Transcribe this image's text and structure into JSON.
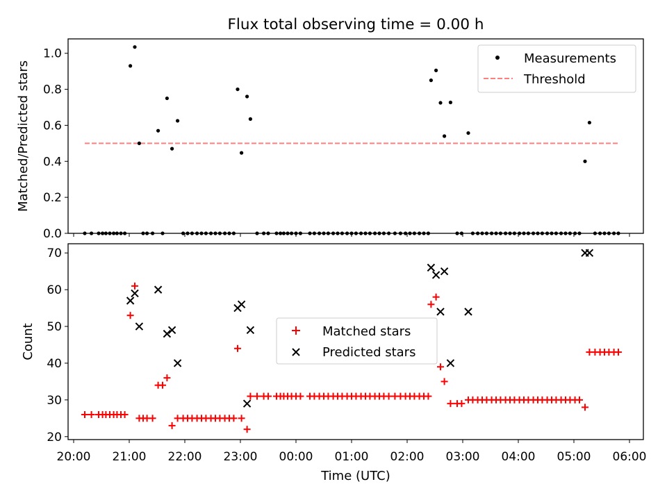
{
  "chart_data": [
    {
      "type": "scatter",
      "title": "Flux total observing time = 0.00 h",
      "ylabel": "Matched/Predicted stars",
      "xlabel": "",
      "ylim": [
        0,
        1.08
      ],
      "yticks": [
        "0.0",
        "0.2",
        "0.4",
        "0.6",
        "0.8",
        "1.0"
      ],
      "legend_position": "upper-right",
      "series": [
        {
          "name": "Measurements",
          "marker": "dot",
          "color": "#000000",
          "points": [
            [
              20.2,
              0
            ],
            [
              20.32,
              0
            ],
            [
              20.45,
              0
            ],
            [
              20.52,
              0
            ],
            [
              20.58,
              0
            ],
            [
              20.65,
              0
            ],
            [
              20.72,
              0
            ],
            [
              20.78,
              0
            ],
            [
              20.85,
              0
            ],
            [
              20.92,
              0
            ],
            [
              21.02,
              0.93
            ],
            [
              21.1,
              1.035
            ],
            [
              21.18,
              0.5
            ],
            [
              21.25,
              0
            ],
            [
              21.32,
              0
            ],
            [
              21.42,
              0
            ],
            [
              21.52,
              0.57
            ],
            [
              21.6,
              0
            ],
            [
              21.68,
              0.75
            ],
            [
              21.77,
              0.47
            ],
            [
              21.87,
              0.625
            ],
            [
              21.97,
              0
            ],
            [
              22.05,
              0
            ],
            [
              22.13,
              0
            ],
            [
              22.22,
              0
            ],
            [
              22.3,
              0
            ],
            [
              22.38,
              0
            ],
            [
              22.47,
              0
            ],
            [
              22.55,
              0
            ],
            [
              22.63,
              0
            ],
            [
              22.72,
              0
            ],
            [
              22.8,
              0
            ],
            [
              22.88,
              0
            ],
            [
              22.95,
              0.8
            ],
            [
              23.02,
              0.447
            ],
            [
              23.12,
              0.76
            ],
            [
              23.18,
              0.635
            ],
            [
              23.3,
              0
            ],
            [
              23.42,
              0
            ],
            [
              23.5,
              0
            ],
            [
              23.65,
              0
            ],
            [
              23.72,
              0
            ],
            [
              23.78,
              0
            ],
            [
              23.85,
              0
            ],
            [
              23.92,
              0
            ],
            [
              24.0,
              0
            ],
            [
              24.08,
              0
            ],
            [
              24.25,
              0
            ],
            [
              24.33,
              0
            ],
            [
              24.42,
              0
            ],
            [
              24.5,
              0
            ],
            [
              24.58,
              0
            ],
            [
              24.67,
              0
            ],
            [
              24.75,
              0
            ],
            [
              24.83,
              0
            ],
            [
              24.92,
              0
            ],
            [
              25.0,
              0
            ],
            [
              25.08,
              0
            ],
            [
              25.17,
              0
            ],
            [
              25.25,
              0
            ],
            [
              25.33,
              0
            ],
            [
              25.42,
              0
            ],
            [
              25.5,
              0
            ],
            [
              25.58,
              0
            ],
            [
              25.67,
              0
            ],
            [
              25.78,
              0
            ],
            [
              25.88,
              0
            ],
            [
              25.97,
              0
            ],
            [
              26.05,
              0
            ],
            [
              26.13,
              0
            ],
            [
              26.22,
              0
            ],
            [
              26.3,
              0
            ],
            [
              26.38,
              0
            ],
            [
              26.43,
              0.85
            ],
            [
              26.52,
              0.905
            ],
            [
              26.6,
              0.725
            ],
            [
              26.67,
              0.54
            ],
            [
              26.78,
              0.727
            ],
            [
              26.9,
              0
            ],
            [
              26.98,
              0
            ],
            [
              27.1,
              0.557
            ],
            [
              27.18,
              0
            ],
            [
              27.27,
              0
            ],
            [
              27.35,
              0
            ],
            [
              27.43,
              0
            ],
            [
              27.52,
              0
            ],
            [
              27.6,
              0
            ],
            [
              27.68,
              0
            ],
            [
              27.77,
              0
            ],
            [
              27.85,
              0
            ],
            [
              27.93,
              0
            ],
            [
              28.02,
              0
            ],
            [
              28.1,
              0
            ],
            [
              28.18,
              0
            ],
            [
              28.27,
              0
            ],
            [
              28.35,
              0
            ],
            [
              28.43,
              0
            ],
            [
              28.52,
              0
            ],
            [
              28.6,
              0
            ],
            [
              28.68,
              0
            ],
            [
              28.77,
              0
            ],
            [
              28.85,
              0
            ],
            [
              28.93,
              0
            ],
            [
              29.02,
              0
            ],
            [
              29.1,
              0
            ],
            [
              29.2,
              0.4
            ],
            [
              29.28,
              0.615
            ],
            [
              29.38,
              0
            ],
            [
              29.47,
              0
            ],
            [
              29.55,
              0
            ],
            [
              29.63,
              0
            ],
            [
              29.72,
              0
            ],
            [
              29.8,
              0
            ]
          ]
        },
        {
          "name": "Threshold",
          "style": "dashed",
          "color": "#ff7f7f",
          "points": [
            [
              20.2,
              0.5
            ],
            [
              29.8,
              0.5
            ]
          ]
        }
      ]
    },
    {
      "type": "scatter",
      "title": "",
      "ylabel": "Count",
      "xlabel": "Time (UTC)",
      "ylim": [
        19.2,
        72.5
      ],
      "xlim": [
        19.9,
        30.25
      ],
      "yticks": [
        "20",
        "30",
        "40",
        "50",
        "60",
        "70"
      ],
      "xticks": [
        "20:00",
        "21:00",
        "22:00",
        "23:00",
        "00:00",
        "01:00",
        "02:00",
        "03:00",
        "04:00",
        "05:00",
        "06:00"
      ],
      "legend_position": "center",
      "series": [
        {
          "name": "Matched stars",
          "marker": "plus",
          "color": "#ff0000",
          "points": [
            [
              20.2,
              26
            ],
            [
              20.32,
              26
            ],
            [
              20.45,
              26
            ],
            [
              20.52,
              26
            ],
            [
              20.58,
              26
            ],
            [
              20.65,
              26
            ],
            [
              20.72,
              26
            ],
            [
              20.78,
              26
            ],
            [
              20.85,
              26
            ],
            [
              20.92,
              26
            ],
            [
              21.02,
              53
            ],
            [
              21.1,
              61
            ],
            [
              21.18,
              25
            ],
            [
              21.25,
              25
            ],
            [
              21.32,
              25
            ],
            [
              21.42,
              25
            ],
            [
              21.52,
              34
            ],
            [
              21.6,
              34
            ],
            [
              21.68,
              36
            ],
            [
              21.77,
              23
            ],
            [
              21.87,
              25
            ],
            [
              21.97,
              25
            ],
            [
              22.05,
              25
            ],
            [
              22.13,
              25
            ],
            [
              22.22,
              25
            ],
            [
              22.3,
              25
            ],
            [
              22.38,
              25
            ],
            [
              22.47,
              25
            ],
            [
              22.55,
              25
            ],
            [
              22.63,
              25
            ],
            [
              22.72,
              25
            ],
            [
              22.8,
              25
            ],
            [
              22.88,
              25
            ],
            [
              22.95,
              44
            ],
            [
              23.02,
              25
            ],
            [
              23.12,
              22
            ],
            [
              23.18,
              31
            ],
            [
              23.3,
              31
            ],
            [
              23.42,
              31
            ],
            [
              23.5,
              31
            ],
            [
              23.65,
              31
            ],
            [
              23.72,
              31
            ],
            [
              23.78,
              31
            ],
            [
              23.85,
              31
            ],
            [
              23.92,
              31
            ],
            [
              24.0,
              31
            ],
            [
              24.08,
              31
            ],
            [
              24.25,
              31
            ],
            [
              24.33,
              31
            ],
            [
              24.42,
              31
            ],
            [
              24.5,
              31
            ],
            [
              24.58,
              31
            ],
            [
              24.67,
              31
            ],
            [
              24.75,
              31
            ],
            [
              24.83,
              31
            ],
            [
              24.92,
              31
            ],
            [
              25.0,
              31
            ],
            [
              25.08,
              31
            ],
            [
              25.17,
              31
            ],
            [
              25.25,
              31
            ],
            [
              25.33,
              31
            ],
            [
              25.42,
              31
            ],
            [
              25.5,
              31
            ],
            [
              25.58,
              31
            ],
            [
              25.67,
              31
            ],
            [
              25.78,
              31
            ],
            [
              25.88,
              31
            ],
            [
              25.97,
              31
            ],
            [
              26.05,
              31
            ],
            [
              26.13,
              31
            ],
            [
              26.22,
              31
            ],
            [
              26.3,
              31
            ],
            [
              26.38,
              31
            ],
            [
              26.43,
              56
            ],
            [
              26.52,
              58
            ],
            [
              26.6,
              39
            ],
            [
              26.67,
              35
            ],
            [
              26.78,
              29
            ],
            [
              26.9,
              29
            ],
            [
              26.98,
              29
            ],
            [
              27.1,
              30
            ],
            [
              27.18,
              30
            ],
            [
              27.27,
              30
            ],
            [
              27.35,
              30
            ],
            [
              27.43,
              30
            ],
            [
              27.52,
              30
            ],
            [
              27.6,
              30
            ],
            [
              27.68,
              30
            ],
            [
              27.77,
              30
            ],
            [
              27.85,
              30
            ],
            [
              27.93,
              30
            ],
            [
              28.02,
              30
            ],
            [
              28.1,
              30
            ],
            [
              28.18,
              30
            ],
            [
              28.27,
              30
            ],
            [
              28.35,
              30
            ],
            [
              28.43,
              30
            ],
            [
              28.52,
              30
            ],
            [
              28.6,
              30
            ],
            [
              28.68,
              30
            ],
            [
              28.77,
              30
            ],
            [
              28.85,
              30
            ],
            [
              28.93,
              30
            ],
            [
              29.02,
              30
            ],
            [
              29.1,
              30
            ],
            [
              29.2,
              28
            ],
            [
              29.28,
              43
            ],
            [
              29.38,
              43
            ],
            [
              29.47,
              43
            ],
            [
              29.55,
              43
            ],
            [
              29.63,
              43
            ],
            [
              29.72,
              43
            ],
            [
              29.8,
              43
            ]
          ]
        },
        {
          "name": "Predicted stars",
          "marker": "x",
          "color": "#000000",
          "points": [
            [
              21.02,
              57
            ],
            [
              21.1,
              59
            ],
            [
              21.18,
              50
            ],
            [
              21.52,
              60
            ],
            [
              21.68,
              48
            ],
            [
              21.77,
              49
            ],
            [
              21.87,
              40
            ],
            [
              22.95,
              55
            ],
            [
              23.02,
              56
            ],
            [
              23.12,
              29
            ],
            [
              23.18,
              49
            ],
            [
              26.43,
              66
            ],
            [
              26.52,
              64
            ],
            [
              26.6,
              54
            ],
            [
              26.67,
              65
            ],
            [
              26.78,
              40
            ],
            [
              27.1,
              54
            ],
            [
              29.2,
              70
            ],
            [
              29.28,
              70
            ]
          ]
        }
      ]
    }
  ]
}
